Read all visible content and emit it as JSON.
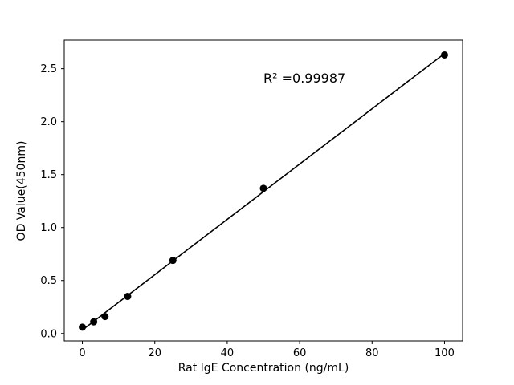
{
  "figure": {
    "background": "#ffffff",
    "annotation": "R² =0.99987"
  },
  "chart_data": {
    "type": "scatter",
    "x": [
      0,
      3.125,
      6.25,
      12.5,
      25,
      50,
      100
    ],
    "y": [
      0.06,
      0.11,
      0.16,
      0.35,
      0.69,
      1.37,
      2.63
    ],
    "fit_line": {
      "type": "linear",
      "r_squared_label": "R² =0.99987",
      "r_squared": 0.99987
    },
    "title": "",
    "xlabel": "Rat IgE Concentration (ng/mL)",
    "ylabel": "OD Value(450nm)",
    "xticks": [
      0,
      20,
      40,
      60,
      80,
      100
    ],
    "ytick_labels": [
      "0.0",
      "0.5",
      "1.0",
      "1.5",
      "2.0",
      "2.5"
    ],
    "xlim": [
      -5,
      105
    ],
    "ylim": [
      -0.07,
      2.77
    ],
    "grid": false,
    "legend_position": "none",
    "marker_color": "#000000",
    "line_color": "#000000"
  }
}
